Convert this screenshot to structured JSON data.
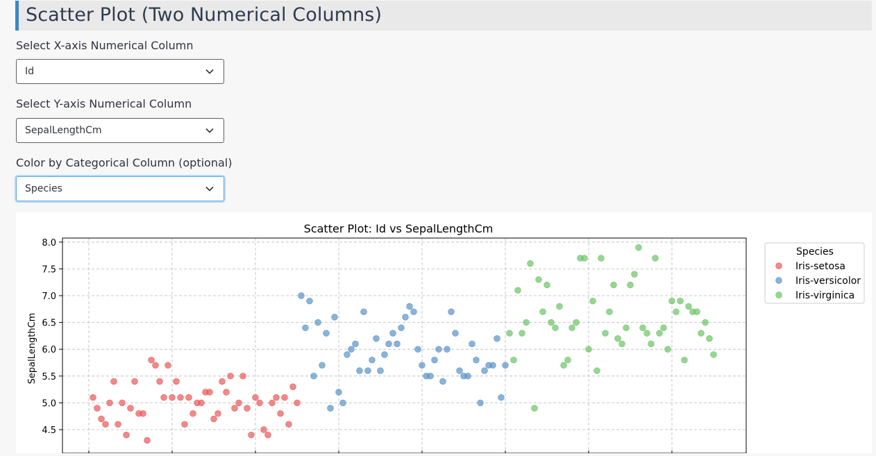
{
  "page": {
    "title": "Scatter Plot (Two Numerical Columns)"
  },
  "controls": {
    "x": {
      "label": "Select X-axis Numerical Column",
      "value": "Id"
    },
    "y": {
      "label": "Select Y-axis Numerical Column",
      "value": "SepalLengthCm"
    },
    "color": {
      "label": "Color by Categorical Column (optional)",
      "value": "Species"
    }
  },
  "chart_data": {
    "type": "scatter",
    "title": "Scatter Plot: Id vs SepalLengthCm",
    "xlabel": "",
    "ylabel": "SepalLengthCm",
    "ylim": [
      4.3,
      8.1
    ],
    "yticks": [
      "4.5",
      "5.0",
      "5.5",
      "6.0",
      "6.5",
      "7.0",
      "7.5",
      "8.0"
    ],
    "grid": true,
    "legend": {
      "title": "Species",
      "placement": "right"
    },
    "series": [
      {
        "name": "Iris-setosa",
        "color": "#e8585a",
        "points": [
          [
            1,
            5.1
          ],
          [
            2,
            4.9
          ],
          [
            3,
            4.7
          ],
          [
            4,
            4.6
          ],
          [
            5,
            5.0
          ],
          [
            6,
            5.4
          ],
          [
            7,
            4.6
          ],
          [
            8,
            5.0
          ],
          [
            9,
            4.4
          ],
          [
            10,
            4.9
          ],
          [
            11,
            5.4
          ],
          [
            12,
            4.8
          ],
          [
            13,
            4.8
          ],
          [
            14,
            4.3
          ],
          [
            15,
            5.8
          ],
          [
            16,
            5.7
          ],
          [
            17,
            5.4
          ],
          [
            18,
            5.1
          ],
          [
            19,
            5.7
          ],
          [
            20,
            5.1
          ],
          [
            21,
            5.4
          ],
          [
            22,
            5.1
          ],
          [
            23,
            4.6
          ],
          [
            24,
            5.1
          ],
          [
            25,
            4.8
          ],
          [
            26,
            5.0
          ],
          [
            27,
            5.0
          ],
          [
            28,
            5.2
          ],
          [
            29,
            5.2
          ],
          [
            30,
            4.7
          ],
          [
            31,
            4.8
          ],
          [
            32,
            5.4
          ],
          [
            33,
            5.2
          ],
          [
            34,
            5.5
          ],
          [
            35,
            4.9
          ],
          [
            36,
            5.0
          ],
          [
            37,
            5.5
          ],
          [
            38,
            4.9
          ],
          [
            39,
            4.4
          ],
          [
            40,
            5.1
          ],
          [
            41,
            5.0
          ],
          [
            42,
            4.5
          ],
          [
            43,
            4.4
          ],
          [
            44,
            5.0
          ],
          [
            45,
            5.1
          ],
          [
            46,
            4.8
          ],
          [
            47,
            5.1
          ],
          [
            48,
            4.6
          ],
          [
            49,
            5.3
          ],
          [
            50,
            5.0
          ]
        ]
      },
      {
        "name": "Iris-versicolor",
        "color": "#5a93c7",
        "points": [
          [
            51,
            7.0
          ],
          [
            52,
            6.4
          ],
          [
            53,
            6.9
          ],
          [
            54,
            5.5
          ],
          [
            55,
            6.5
          ],
          [
            56,
            5.7
          ],
          [
            57,
            6.3
          ],
          [
            58,
            4.9
          ],
          [
            59,
            6.6
          ],
          [
            60,
            5.2
          ],
          [
            61,
            5.0
          ],
          [
            62,
            5.9
          ],
          [
            63,
            6.0
          ],
          [
            64,
            6.1
          ],
          [
            65,
            5.6
          ],
          [
            66,
            6.7
          ],
          [
            67,
            5.6
          ],
          [
            68,
            5.8
          ],
          [
            69,
            6.2
          ],
          [
            70,
            5.6
          ],
          [
            71,
            5.9
          ],
          [
            72,
            6.1
          ],
          [
            73,
            6.3
          ],
          [
            74,
            6.1
          ],
          [
            75,
            6.4
          ],
          [
            76,
            6.6
          ],
          [
            77,
            6.8
          ],
          [
            78,
            6.7
          ],
          [
            79,
            6.0
          ],
          [
            80,
            5.7
          ],
          [
            81,
            5.5
          ],
          [
            82,
            5.5
          ],
          [
            83,
            5.8
          ],
          [
            84,
            6.0
          ],
          [
            85,
            5.4
          ],
          [
            86,
            6.0
          ],
          [
            87,
            6.7
          ],
          [
            88,
            6.3
          ],
          [
            89,
            5.6
          ],
          [
            90,
            5.5
          ],
          [
            91,
            5.5
          ],
          [
            92,
            6.1
          ],
          [
            93,
            5.8
          ],
          [
            94,
            5.0
          ],
          [
            95,
            5.6
          ],
          [
            96,
            5.7
          ],
          [
            97,
            5.7
          ],
          [
            98,
            6.2
          ],
          [
            99,
            5.1
          ],
          [
            100,
            5.7
          ]
        ]
      },
      {
        "name": "Iris-virginica",
        "color": "#6cc367",
        "points": [
          [
            101,
            6.3
          ],
          [
            102,
            5.8
          ],
          [
            103,
            7.1
          ],
          [
            104,
            6.3
          ],
          [
            105,
            6.5
          ],
          [
            106,
            7.6
          ],
          [
            107,
            4.9
          ],
          [
            108,
            7.3
          ],
          [
            109,
            6.7
          ],
          [
            110,
            7.2
          ],
          [
            111,
            6.5
          ],
          [
            112,
            6.4
          ],
          [
            113,
            6.8
          ],
          [
            114,
            5.7
          ],
          [
            115,
            5.8
          ],
          [
            116,
            6.4
          ],
          [
            117,
            6.5
          ],
          [
            118,
            7.7
          ],
          [
            119,
            7.7
          ],
          [
            120,
            6.0
          ],
          [
            121,
            6.9
          ],
          [
            122,
            5.6
          ],
          [
            123,
            7.7
          ],
          [
            124,
            6.3
          ],
          [
            125,
            6.7
          ],
          [
            126,
            7.2
          ],
          [
            127,
            6.2
          ],
          [
            128,
            6.1
          ],
          [
            129,
            6.4
          ],
          [
            130,
            7.2
          ],
          [
            131,
            7.4
          ],
          [
            132,
            7.9
          ],
          [
            133,
            6.4
          ],
          [
            134,
            6.3
          ],
          [
            135,
            6.1
          ],
          [
            136,
            7.7
          ],
          [
            137,
            6.3
          ],
          [
            138,
            6.4
          ],
          [
            139,
            6.0
          ],
          [
            140,
            6.9
          ],
          [
            141,
            6.7
          ],
          [
            142,
            6.9
          ],
          [
            143,
            5.8
          ],
          [
            144,
            6.8
          ],
          [
            145,
            6.7
          ],
          [
            146,
            6.7
          ],
          [
            147,
            6.3
          ],
          [
            148,
            6.5
          ],
          [
            149,
            6.2
          ],
          [
            150,
            5.9
          ]
        ]
      }
    ]
  }
}
